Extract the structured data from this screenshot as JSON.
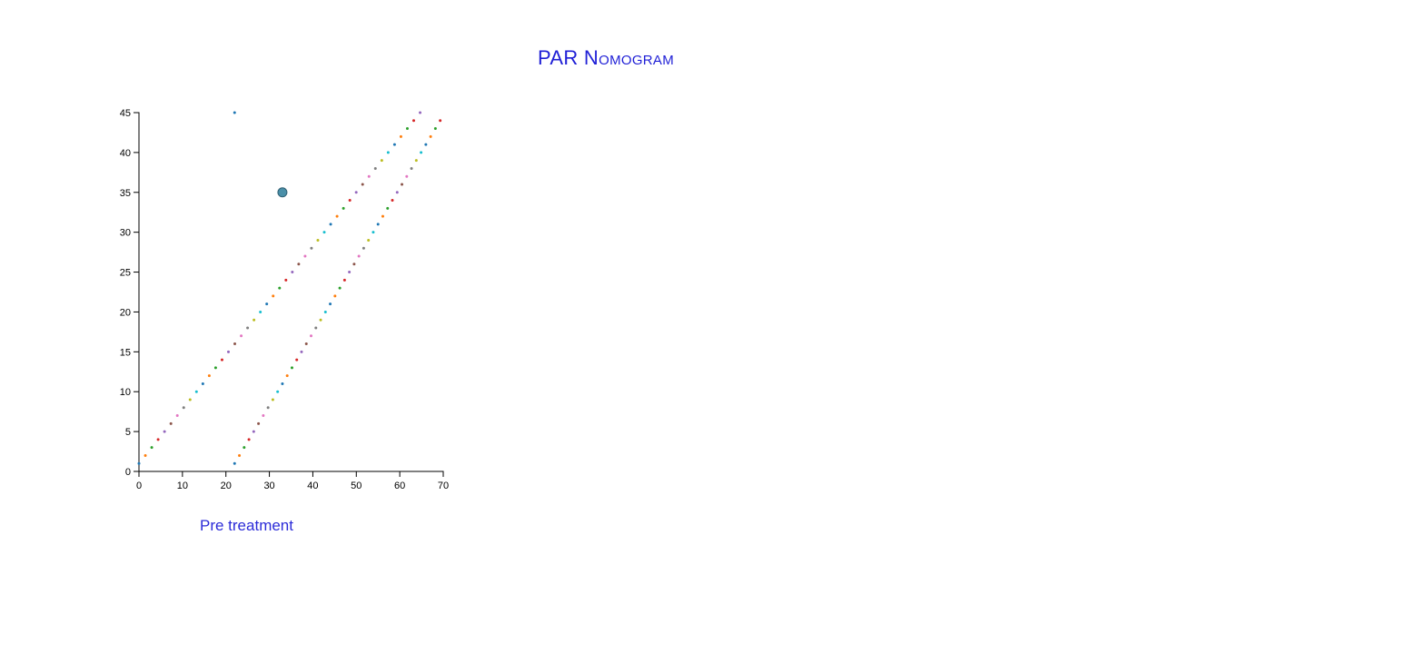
{
  "page": {
    "title": "PAR Nomogram",
    "caption": "Pre treatment"
  },
  "chart_data": {
    "type": "scatter",
    "xlim": [
      0,
      70
    ],
    "ylim": [
      0,
      45
    ],
    "x_ticks": [
      0,
      10,
      20,
      30,
      40,
      50,
      60,
      70
    ],
    "y_ticks": [
      0,
      5,
      10,
      15,
      20,
      25,
      30,
      35,
      40,
      45
    ],
    "grid": false,
    "palette": [
      "#1f77b4",
      "#ff7f0e",
      "#2ca02c",
      "#d62728",
      "#9467bd",
      "#8c564b",
      "#e377c2",
      "#7f7f7f",
      "#bcbd22",
      "#17becf"
    ],
    "series": [
      {
        "x_start": 0,
        "y_start": 1,
        "x_step": 1.47,
        "y_step": 1,
        "count": 45
      },
      {
        "x_start": 22,
        "y_start": 1,
        "x_step": 1.1,
        "y_step": 1,
        "count": 44
      },
      {
        "points": [
          {
            "x": 22,
            "y": 45
          }
        ]
      }
    ],
    "highlight_point": {
      "x": 33,
      "y": 35,
      "color": "#4a8fa8"
    }
  }
}
